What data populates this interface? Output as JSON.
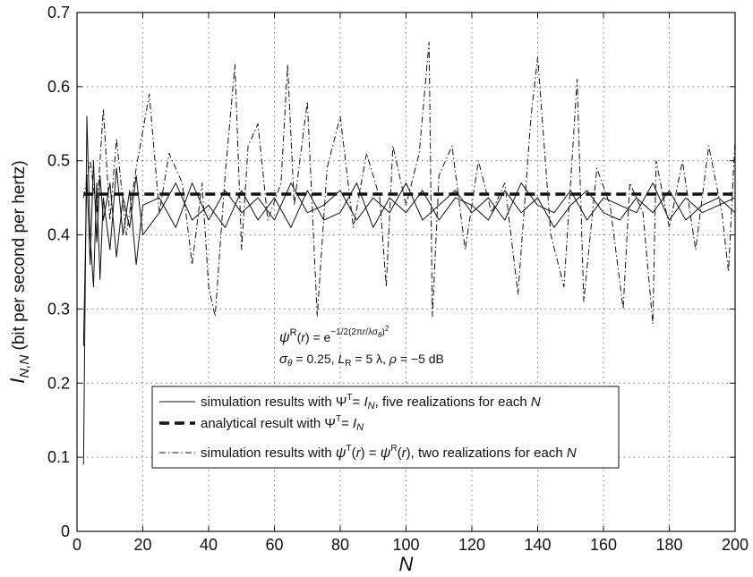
{
  "chart_data": {
    "type": "line",
    "xlabel": "N",
    "ylabel": {
      "symbol": "I",
      "subscript": "N,N",
      "unit": " (bit per second per hertz)"
    },
    "xlim": [
      0,
      200
    ],
    "ylim": [
      0,
      0.7
    ],
    "xticks": [
      0,
      20,
      40,
      60,
      80,
      100,
      120,
      140,
      160,
      180,
      200
    ],
    "yticks": [
      0,
      0.1,
      0.2,
      0.3,
      0.4,
      0.5,
      0.6,
      0.7
    ],
    "grid": true,
    "annotation": {
      "line1": "ψ^R(r) = e^{−1/2(2πr/λσ_θ)^2}",
      "line2": "σ_θ = 0.25, L_R = 5 λ, ρ = −5 dB"
    },
    "legend": {
      "placement": "lower-center",
      "entries": [
        {
          "style": "solid",
          "text_pre": "simulation results with ",
          "math": "Ψ^T = I_N",
          "text_post": ", five realizations for each ",
          "var": "N"
        },
        {
          "style": "dashed-bold",
          "text_pre": "analytical result with ",
          "math": "Ψ^T = I_N",
          "text_post": "",
          "var": ""
        },
        {
          "style": "dashdot",
          "text_pre": "simulation results with ",
          "math": "ψ^T(r) = ψ^R(r)",
          "text_post": ", two realizations for each ",
          "var": "N"
        }
      ]
    },
    "series": [
      {
        "style": "dashed-bold",
        "x": [
          2,
          200
        ],
        "y": [
          0.455,
          0.455
        ]
      },
      {
        "style": "solid",
        "x": [
          2,
          3,
          4,
          5,
          6,
          7,
          8,
          10,
          12,
          14,
          16,
          18,
          20,
          25,
          30,
          35,
          40,
          45,
          50,
          55,
          60,
          65,
          70,
          75,
          80,
          85,
          90,
          95,
          100,
          105,
          110,
          115,
          120,
          125,
          130,
          135,
          140,
          145,
          150,
          155,
          160,
          165,
          170,
          175,
          180,
          185,
          190,
          195,
          200
        ],
        "y": [
          0.09,
          0.56,
          0.4,
          0.33,
          0.47,
          0.34,
          0.45,
          0.38,
          0.49,
          0.4,
          0.46,
          0.36,
          0.44,
          0.45,
          0.41,
          0.47,
          0.42,
          0.46,
          0.43,
          0.45,
          0.42,
          0.47,
          0.43,
          0.44,
          0.46,
          0.42,
          0.45,
          0.43,
          0.47,
          0.42,
          0.44,
          0.46,
          0.43,
          0.45,
          0.42,
          0.47,
          0.44,
          0.43,
          0.46,
          0.42,
          0.45,
          0.44,
          0.43,
          0.47,
          0.42,
          0.45,
          0.43,
          0.44,
          0.45
        ]
      },
      {
        "style": "solid",
        "x": [
          2,
          3,
          4,
          5,
          6,
          7,
          8,
          10,
          12,
          14,
          16,
          18,
          20,
          25,
          30,
          35,
          40,
          45,
          50,
          55,
          60,
          65,
          70,
          75,
          80,
          85,
          90,
          95,
          100,
          105,
          110,
          115,
          120,
          125,
          130,
          135,
          140,
          145,
          150,
          155,
          160,
          165,
          170,
          175,
          180,
          185,
          190,
          195,
          200
        ],
        "y": [
          0.25,
          0.48,
          0.36,
          0.5,
          0.39,
          0.48,
          0.42,
          0.47,
          0.37,
          0.45,
          0.41,
          0.48,
          0.4,
          0.43,
          0.47,
          0.42,
          0.44,
          0.41,
          0.46,
          0.42,
          0.45,
          0.41,
          0.46,
          0.42,
          0.43,
          0.47,
          0.41,
          0.45,
          0.43,
          0.46,
          0.42,
          0.45,
          0.44,
          0.42,
          0.46,
          0.43,
          0.45,
          0.41,
          0.44,
          0.46,
          0.43,
          0.42,
          0.45,
          0.43,
          0.46,
          0.42,
          0.44,
          0.45,
          0.43
        ]
      },
      {
        "style": "dashdot",
        "x": [
          2,
          4,
          6,
          8,
          10,
          12,
          15,
          18,
          22,
          25,
          28,
          32,
          35,
          38,
          40,
          42,
          45,
          48,
          50,
          52,
          55,
          58,
          62,
          64,
          66,
          70,
          73,
          76,
          80,
          84,
          88,
          92,
          94,
          96,
          100,
          104,
          107,
          108,
          110,
          114,
          118,
          122,
          126,
          130,
          134,
          138,
          140,
          144,
          148,
          152,
          154,
          158,
          162,
          166,
          168,
          172,
          175,
          176,
          180,
          184,
          188,
          192,
          196,
          198,
          200
        ],
        "y": [
          0.45,
          0.5,
          0.43,
          0.57,
          0.42,
          0.53,
          0.4,
          0.49,
          0.59,
          0.43,
          0.51,
          0.47,
          0.36,
          0.47,
          0.33,
          0.29,
          0.48,
          0.63,
          0.38,
          0.52,
          0.55,
          0.42,
          0.47,
          0.63,
          0.44,
          0.58,
          0.29,
          0.49,
          0.56,
          0.41,
          0.51,
          0.45,
          0.33,
          0.52,
          0.44,
          0.51,
          0.66,
          0.29,
          0.48,
          0.52,
          0.38,
          0.5,
          0.43,
          0.47,
          0.32,
          0.56,
          0.64,
          0.4,
          0.33,
          0.61,
          0.31,
          0.49,
          0.44,
          0.3,
          0.47,
          0.43,
          0.28,
          0.5,
          0.41,
          0.5,
          0.38,
          0.52,
          0.43,
          0.35,
          0.53
        ]
      }
    ]
  }
}
